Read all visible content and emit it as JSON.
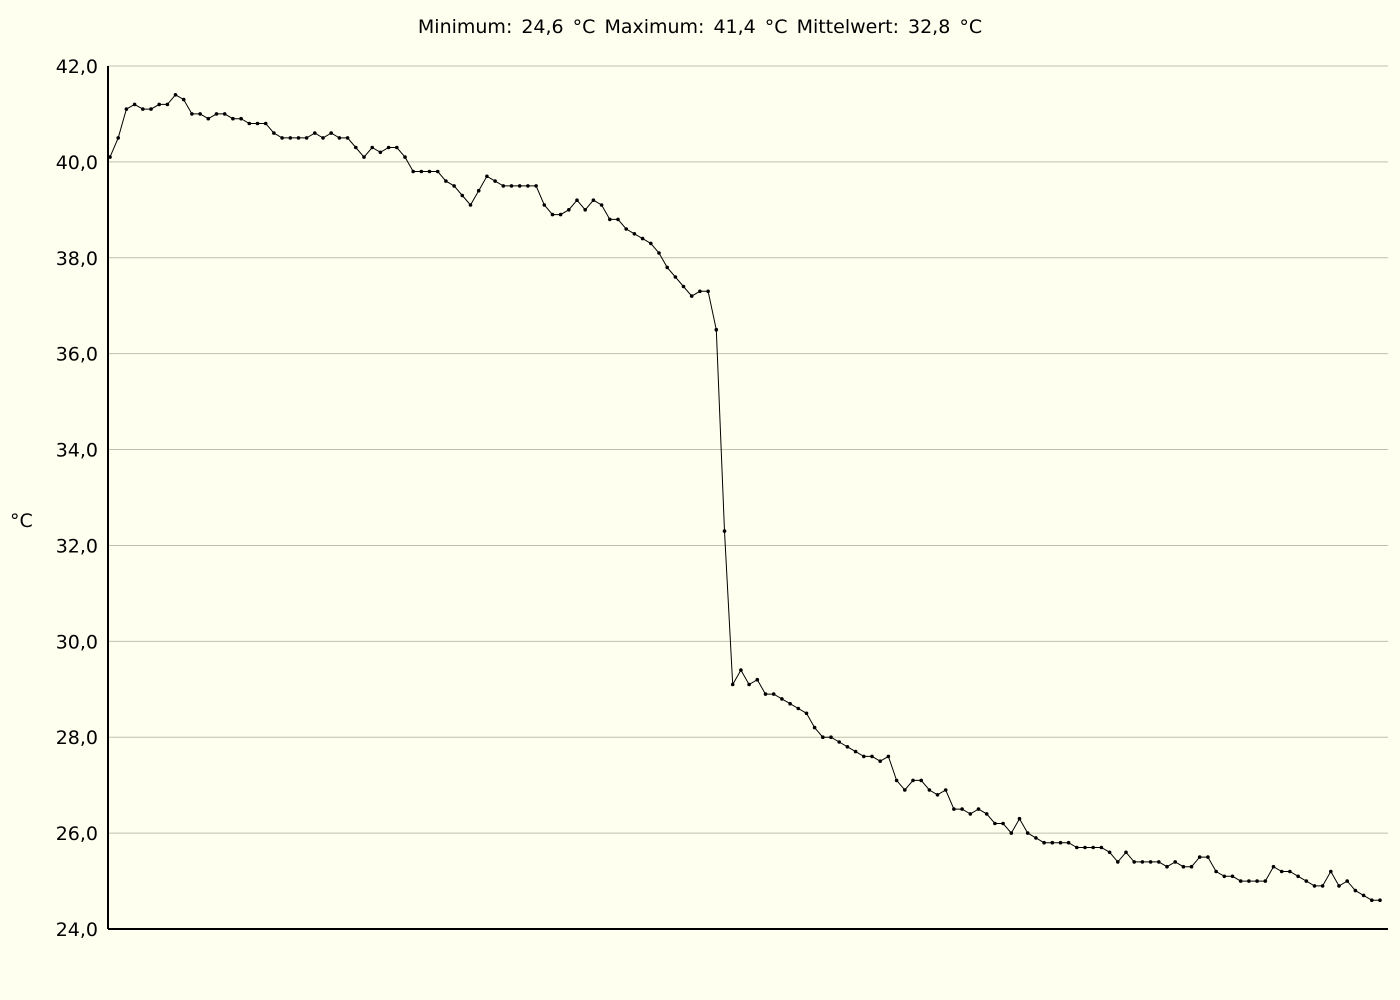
{
  "summary": {
    "min_label": "Minimum:",
    "min_value": "24,6",
    "max_label": "Maximum:",
    "max_value": "41,4",
    "mean_label": "Mittelwert:",
    "mean_value": "32,8",
    "unit": "°C"
  },
  "chart_data": {
    "type": "line",
    "title": "",
    "xlabel": "",
    "ylabel": "°C",
    "ylim": [
      24.0,
      42.0
    ],
    "yticks": [
      24.0,
      26.0,
      28.0,
      30.0,
      32.0,
      34.0,
      36.0,
      38.0,
      40.0,
      42.0
    ],
    "ytick_labels": [
      "24,0",
      "26,0",
      "28,0",
      "30,0",
      "32,0",
      "34,0",
      "36,0",
      "38,0",
      "40,0",
      "42,0"
    ],
    "grid": true,
    "markers": true,
    "colors": {
      "background": "#fffff0",
      "line": "#000000",
      "grid": "#c0c0b0",
      "axis": "#000000"
    },
    "series": [
      {
        "values": [
          40.1,
          40.5,
          41.1,
          41.2,
          41.1,
          41.1,
          41.2,
          41.2,
          41.4,
          41.3,
          41.0,
          41.0,
          40.9,
          41.0,
          41.0,
          40.9,
          40.9,
          40.8,
          40.8,
          40.8,
          40.6,
          40.5,
          40.5,
          40.5,
          40.5,
          40.6,
          40.5,
          40.6,
          40.5,
          40.5,
          40.3,
          40.1,
          40.3,
          40.2,
          40.3,
          40.3,
          40.1,
          39.8,
          39.8,
          39.8,
          39.8,
          39.6,
          39.5,
          39.3,
          39.1,
          39.4,
          39.7,
          39.6,
          39.5,
          39.5,
          39.5,
          39.5,
          39.5,
          39.1,
          38.9,
          38.9,
          39.0,
          39.2,
          39.0,
          39.2,
          39.1,
          38.8,
          38.8,
          38.6,
          38.5,
          38.4,
          38.3,
          38.1,
          37.8,
          37.6,
          37.4,
          37.2,
          37.3,
          37.3,
          36.5,
          32.3,
          29.1,
          29.4,
          29.1,
          29.2,
          28.9,
          28.9,
          28.8,
          28.7,
          28.6,
          28.5,
          28.2,
          28.0,
          28.0,
          27.9,
          27.8,
          27.7,
          27.6,
          27.6,
          27.5,
          27.6,
          27.1,
          26.9,
          27.1,
          27.1,
          26.9,
          26.8,
          26.9,
          26.5,
          26.5,
          26.4,
          26.5,
          26.4,
          26.2,
          26.2,
          26.0,
          26.3,
          26.0,
          25.9,
          25.8,
          25.8,
          25.8,
          25.8,
          25.7,
          25.7,
          25.7,
          25.7,
          25.6,
          25.4,
          25.6,
          25.4,
          25.4,
          25.4,
          25.4,
          25.3,
          25.4,
          25.3,
          25.3,
          25.5,
          25.5,
          25.2,
          25.1,
          25.1,
          25.0,
          25.0,
          25.0,
          25.0,
          25.3,
          25.2,
          25.2,
          25.1,
          25.0,
          24.9,
          24.9,
          25.2,
          24.9,
          25.0,
          24.8,
          24.7,
          24.6,
          24.6
        ]
      }
    ]
  }
}
